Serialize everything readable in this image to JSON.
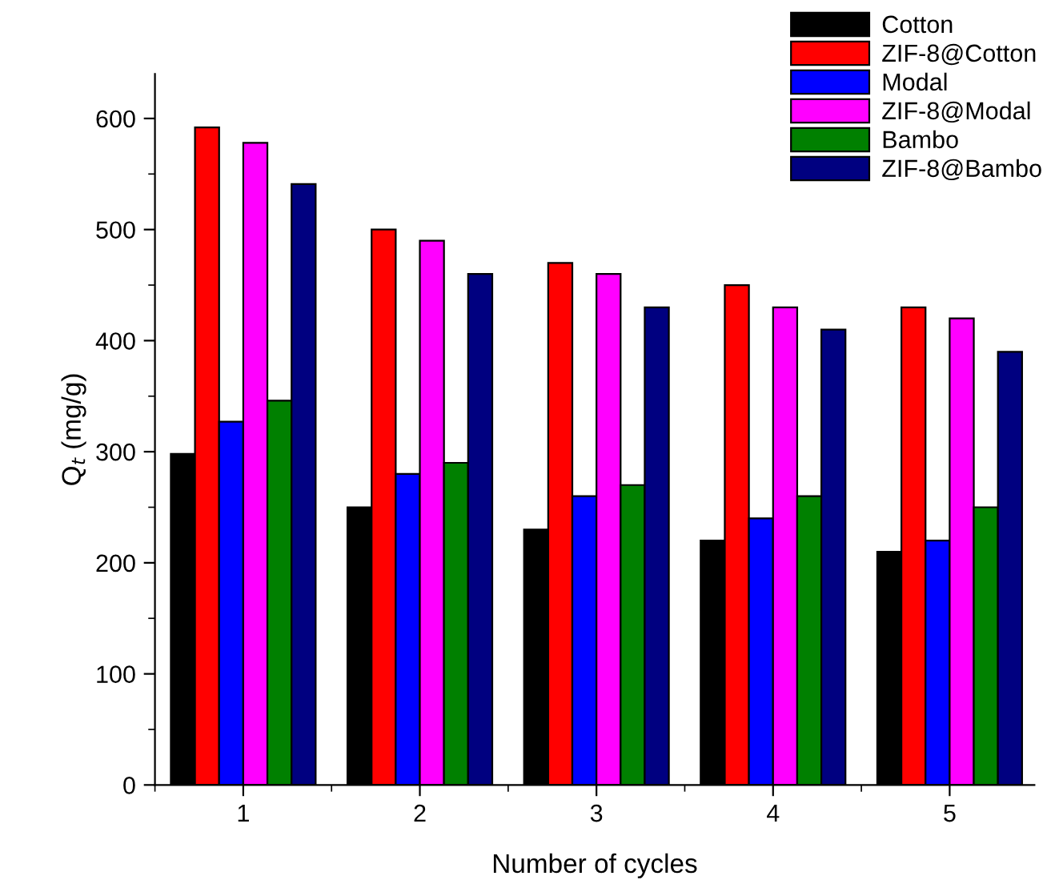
{
  "chart_data": {
    "type": "bar",
    "xlabel": "Number of cycles",
    "ylabel": "Q$_{t}$ (mg/g)",
    "categories": [
      "1",
      "2",
      "3",
      "4",
      "5"
    ],
    "series": [
      {
        "name": "Cotton",
        "color": "#000000",
        "values": [
          298,
          250,
          230,
          220,
          210
        ]
      },
      {
        "name": "ZIF-8@Cotton",
        "color": "#ff0000",
        "values": [
          592,
          500,
          470,
          450,
          430
        ]
      },
      {
        "name": "Modal",
        "color": "#0000ff",
        "values": [
          327,
          280,
          260,
          240,
          220
        ]
      },
      {
        "name": "ZIF-8@Modal",
        "color": "#ff00ff",
        "values": [
          578,
          490,
          460,
          430,
          420
        ]
      },
      {
        "name": "Bambo",
        "color": "#008000",
        "values": [
          346,
          290,
          270,
          260,
          250
        ]
      },
      {
        "name": "ZIF-8@Bambo",
        "color": "#000080",
        "values": [
          541,
          460,
          430,
          410,
          390
        ]
      }
    ],
    "ylim": [
      0,
      640
    ],
    "yticks": [
      0,
      100,
      200,
      300,
      400,
      500,
      600
    ],
    "grid": false,
    "legend": "top right"
  }
}
